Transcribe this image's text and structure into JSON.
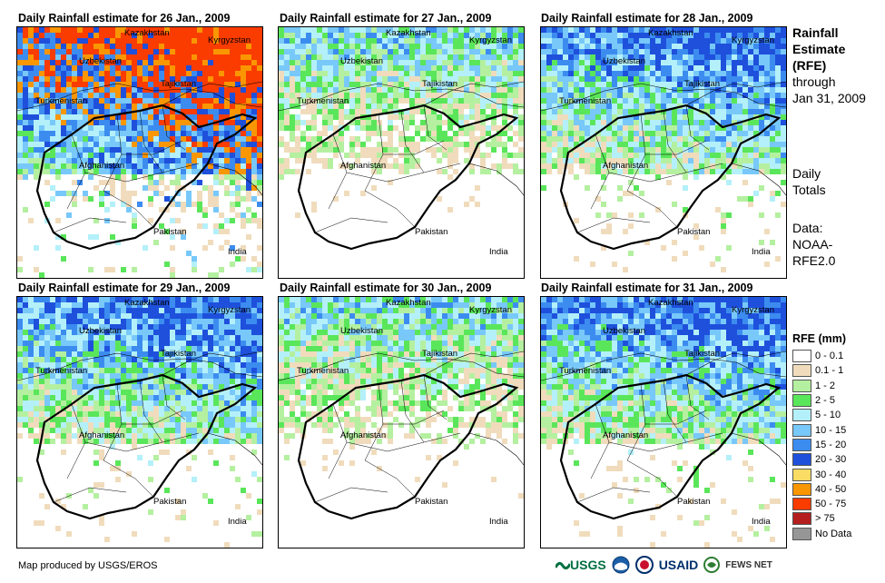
{
  "panels": [
    {
      "title": "Daily Rainfall estimate for 26 Jan., 2009",
      "intensity": "high"
    },
    {
      "title": "Daily Rainfall estimate for 27 Jan., 2009",
      "intensity": "low"
    },
    {
      "title": "Daily Rainfall estimate for 28 Jan., 2009",
      "intensity": "medium"
    },
    {
      "title": "Daily Rainfall estimate for 29 Jan., 2009",
      "intensity": "medium"
    },
    {
      "title": "Daily Rainfall estimate for 30 Jan., 2009",
      "intensity": "low"
    },
    {
      "title": "Daily Rainfall estimate for 31 Jan., 2009",
      "intensity": "medium"
    }
  ],
  "countries": {
    "kazakhstan": "Kazakhstan",
    "kyrgyzstan": "Kyrgyzstan",
    "uzbekistan": "Uzbekistan",
    "tajikistan": "Tajikistan",
    "turkmenistan": "Turkmenistan",
    "afghanistan": "Afghanistan",
    "pakistan": "Pakistan",
    "india": "India"
  },
  "side": {
    "title_1": "Rainfall",
    "title_2": "Estimate",
    "title_3": "(RFE)",
    "through": "through",
    "date": "Jan 31, 2009",
    "daily_1": "Daily",
    "daily_2": "Totals",
    "data_1": "Data:",
    "data_2": "NOAA-",
    "data_3": "RFE2.0"
  },
  "legend": {
    "title": "RFE (mm)",
    "items": [
      {
        "label": "0 - 0.1",
        "color": "#ffffff"
      },
      {
        "label": "0.1 - 1",
        "color": "#f0dcbc"
      },
      {
        "label": "1 - 2",
        "color": "#b4f0a0"
      },
      {
        "label": "2 - 5",
        "color": "#5ae65a"
      },
      {
        "label": "5 - 10",
        "color": "#b4f0fa"
      },
      {
        "label": "10 - 15",
        "color": "#78c8fa"
      },
      {
        "label": "15 - 20",
        "color": "#3c8cf0"
      },
      {
        "label": "20 - 30",
        "color": "#1e50dc"
      },
      {
        "label": "30 - 40",
        "color": "#fadc64"
      },
      {
        "label": "40 - 50",
        "color": "#fa9600"
      },
      {
        "label": "50 - 75",
        "color": "#fa3c00"
      },
      {
        "label": "> 75",
        "color": "#b41e1e"
      },
      {
        "label": "No Data",
        "color": "#969696"
      }
    ]
  },
  "footer": "Map produced by USGS/EROS",
  "logos": {
    "usgs": "USGS",
    "usaid": "USAID",
    "fewsnet": "FEWS NET"
  }
}
